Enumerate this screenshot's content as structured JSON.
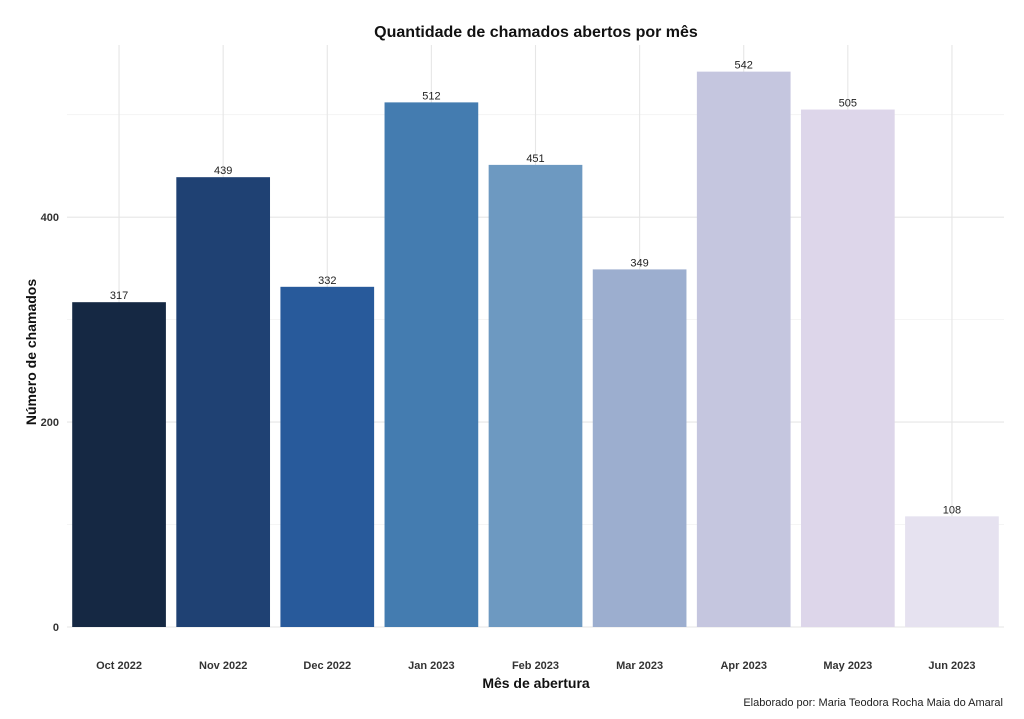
{
  "chart_data": {
    "type": "bar",
    "title": "Quantidade de chamados abertos por mês",
    "xlabel": "Mês de abertura",
    "ylabel": "Número de chamados",
    "caption": "Elaborado por: Maria Teodora Rocha Maia do Amaral",
    "categories": [
      "Oct 2022",
      "Nov 2022",
      "Dec 2022",
      "Jan 2023",
      "Feb 2023",
      "Mar 2023",
      "Apr 2023",
      "May 2023",
      "Jun 2023"
    ],
    "values": [
      317,
      439,
      332,
      512,
      451,
      349,
      542,
      505,
      108
    ],
    "colors": [
      "#152843",
      "#1f4173",
      "#285a9b",
      "#447cb0",
      "#6d99c1",
      "#9caecf",
      "#c5c6df",
      "#ddd6ea",
      "#e6e2f0"
    ],
    "ylim": [
      0,
      568
    ],
    "yticks": [
      0,
      200,
      400
    ],
    "grid": true,
    "legend": "none"
  }
}
